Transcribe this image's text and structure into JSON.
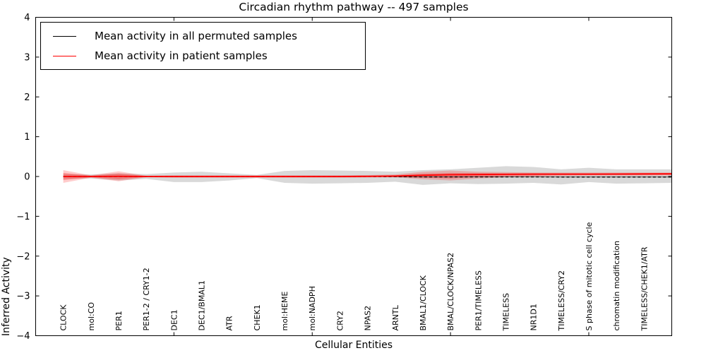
{
  "title": "Circadian rhythm pathway -- 497 samples",
  "legend": {
    "items": [
      {
        "label": "Mean activity in all permuted samples",
        "color": "#000000"
      },
      {
        "label": "Mean activity in patient samples",
        "color": "#ff0000"
      }
    ]
  },
  "chart_data": {
    "type": "line",
    "title": "Circadian rhythm pathway -- 497 samples",
    "xlabel": "Cellular Entities",
    "ylabel": "Inferred Activity",
    "ylim": [
      -4,
      4
    ],
    "yticks": [
      -4,
      -3,
      -2,
      -1,
      0,
      1,
      2,
      3,
      4
    ],
    "xlim": [
      0,
      23
    ],
    "major_xticks": [
      5,
      10,
      15,
      20
    ],
    "grid": false,
    "legend_position": "upper left",
    "categories": [
      "CLOCK",
      "mol:CO",
      "PER1",
      "PER1-2 / CRY1-2",
      "DEC1",
      "DEC1/BMAL1",
      "ATR",
      "CHEK1",
      "mol:HEME",
      "mol:NADPH",
      "CRY2",
      "NPAS2",
      "ARNTL",
      "BMAL1/CLOCK",
      "BMAL/CLOCK/NPAS2",
      "PER1/TIMELESS",
      "TIMELESS",
      "NR1D1",
      "TIMELESS/CRY2",
      "S phase of mitotic cell cycle",
      "chromatin modification",
      "TIMELESS/CHEK1/ATR"
    ],
    "category_x": [
      1,
      2,
      3,
      4,
      5,
      6,
      7,
      8,
      9,
      10,
      11,
      12,
      13,
      14,
      15,
      16,
      17,
      18,
      19,
      20,
      21,
      22
    ],
    "x": [
      1,
      2,
      3,
      4,
      5,
      6,
      7,
      8,
      9,
      10,
      11,
      12,
      13,
      14,
      15,
      16,
      17,
      18,
      19,
      20,
      21,
      22,
      23
    ],
    "series": [
      {
        "name": "Mean activity in all permuted samples",
        "color": "#000000",
        "style": "dashed",
        "values": [
          0,
          0,
          0,
          0,
          0,
          0,
          0,
          0,
          0,
          0,
          0,
          0,
          -0.005,
          -0.01,
          -0.01,
          -0.01,
          -0.01,
          -0.01,
          -0.012,
          -0.012,
          -0.012,
          -0.012,
          -0.012
        ]
      },
      {
        "name": "Mean activity in patient samples",
        "color": "#ff0000",
        "style": "solid",
        "values": [
          0,
          0,
          0.005,
          0,
          0,
          0,
          0,
          0,
          0,
          0,
          0,
          0.005,
          0.01,
          0.03,
          0.045,
          0.05,
          0.055,
          0.06,
          0.06,
          0.06,
          0.062,
          0.065,
          0.068
        ]
      }
    ],
    "bands": [
      {
        "name": "permuted-samples-range",
        "color": "rgba(128,128,128,0.30)",
        "upper": [
          0.06,
          0.05,
          0.08,
          0.06,
          0.1,
          0.12,
          0.08,
          0.04,
          0.14,
          0.16,
          0.15,
          0.14,
          0.12,
          0.16,
          0.18,
          0.22,
          0.26,
          0.24,
          0.18,
          0.22,
          0.18,
          0.18,
          0.18
        ],
        "lower": [
          -0.06,
          -0.05,
          -0.1,
          -0.06,
          -0.14,
          -0.14,
          -0.1,
          -0.04,
          -0.16,
          -0.18,
          -0.17,
          -0.16,
          -0.13,
          -0.21,
          -0.17,
          -0.19,
          -0.18,
          -0.16,
          -0.2,
          -0.14,
          -0.18,
          -0.17,
          -0.16
        ]
      },
      {
        "name": "patient-samples-range-outer",
        "color": "rgba(255,0,0,0.20)",
        "upper": [
          0.16,
          0.03,
          0.13,
          0.02,
          0.03,
          0.03,
          0.03,
          0.03,
          0.03,
          0.03,
          0.03,
          0.035,
          0.05,
          0.12,
          0.15,
          0.12,
          0.11,
          0.1,
          0.1,
          0.1,
          0.1,
          0.1,
          0.1
        ],
        "lower": [
          -0.16,
          -0.03,
          -0.12,
          -0.02,
          -0.03,
          -0.03,
          -0.03,
          -0.03,
          -0.03,
          -0.03,
          -0.03,
          -0.025,
          -0.02,
          -0.07,
          -0.1,
          -0.05,
          -0.02,
          0.0,
          0.015,
          0.02,
          0.02,
          0.02,
          0.025
        ]
      },
      {
        "name": "patient-samples-range-inner",
        "color": "rgba(255,0,0,0.28)",
        "upper": [
          0.09,
          0.018,
          0.075,
          0.012,
          0.018,
          0.018,
          0.018,
          0.018,
          0.018,
          0.018,
          0.018,
          0.02,
          0.03,
          0.07,
          0.09,
          0.085,
          0.08,
          0.08,
          0.08,
          0.08,
          0.08,
          0.08,
          0.08
        ],
        "lower": [
          -0.09,
          -0.018,
          -0.07,
          -0.012,
          -0.018,
          -0.018,
          -0.018,
          -0.018,
          -0.018,
          -0.018,
          -0.018,
          -0.015,
          -0.01,
          -0.03,
          -0.05,
          -0.01,
          0.01,
          0.02,
          0.03,
          0.035,
          0.035,
          0.035,
          0.04
        ]
      }
    ],
    "colors": {
      "spine": "#000000",
      "permuted_line": "#000000",
      "patient_line": "#ff0000",
      "background": "#ffffff"
    }
  }
}
